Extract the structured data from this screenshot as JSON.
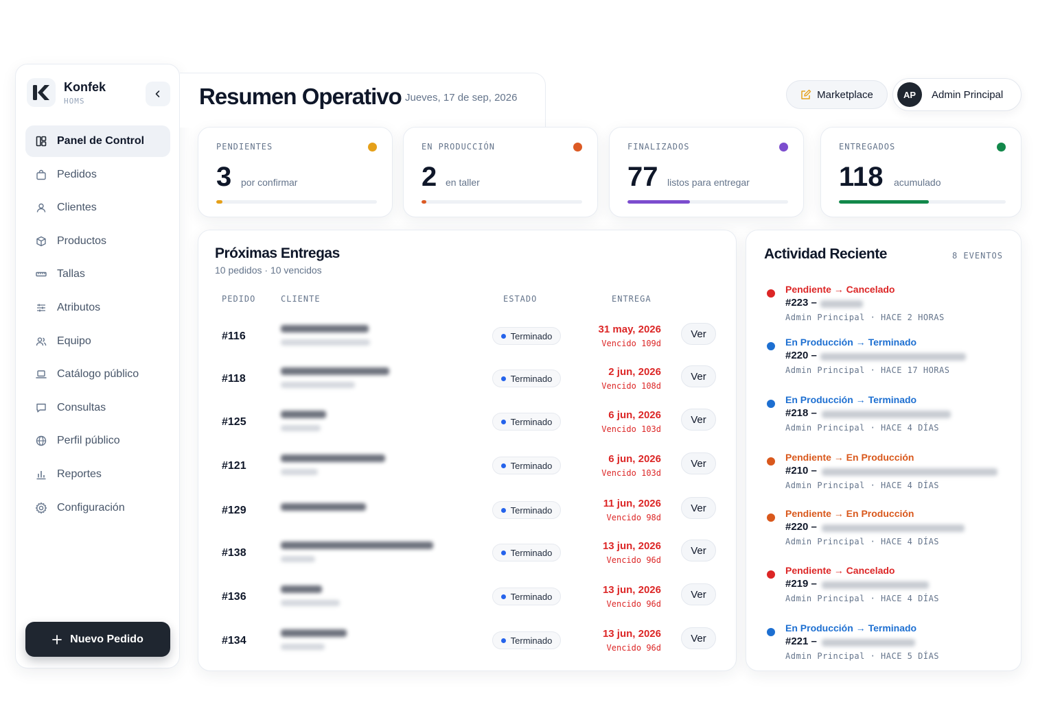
{
  "brand": {
    "name": "Konfek",
    "subtitle": "HOMS"
  },
  "sidebar": {
    "items": [
      {
        "label": "Panel de Control",
        "icon": "grid-icon"
      },
      {
        "label": "Pedidos",
        "icon": "bag-icon"
      },
      {
        "label": "Clientes",
        "icon": "user-icon"
      },
      {
        "label": "Productos",
        "icon": "box-icon"
      },
      {
        "label": "Tallas",
        "icon": "ruler-icon"
      },
      {
        "label": "Atributos",
        "icon": "sliders-icon"
      },
      {
        "label": "Equipo",
        "icon": "users-icon"
      },
      {
        "label": "Catálogo público",
        "icon": "laptop-icon"
      },
      {
        "label": "Consultas",
        "icon": "message-icon"
      },
      {
        "label": "Perfil público",
        "icon": "globe-icon"
      },
      {
        "label": "Reportes",
        "icon": "bar-chart-icon"
      },
      {
        "label": "Configuración",
        "icon": "gear-icon"
      }
    ],
    "new_order_label": "Nuevo Pedido"
  },
  "header": {
    "title": "Resumen Operativo",
    "date": "Jueves, 17 de sep, 2026",
    "marketplace_label": "Marketplace",
    "user_initials": "AP",
    "user_name": "Admin Principal"
  },
  "stats": [
    {
      "label": "PENDIENTES",
      "value": "3",
      "caption": "por confirmar",
      "color": "#e5a019",
      "progress": 0.04
    },
    {
      "label": "EN PRODUCCIÓN",
      "value": "2",
      "caption": "en taller",
      "color": "#dc5a24",
      "progress": 0.02
    },
    {
      "label": "FINALIZADOS",
      "value": "77",
      "caption": "listos para entregar",
      "color": "#7c4dce",
      "progress": 0.39
    },
    {
      "label": "ENTREGADOS",
      "value": "118",
      "caption": "acumulado",
      "color": "#12884a",
      "progress": 0.54
    }
  ],
  "deliveries": {
    "title": "Próximas Entregas",
    "subtitle": "10 pedidos · 10 vencidos",
    "columns": {
      "order": "PEDIDO",
      "client": "CLIENTE",
      "status": "ESTADO",
      "delivery": "ENTREGA"
    },
    "rows": [
      {
        "id": "#116",
        "status": "Terminado",
        "date": "31 may, 2026",
        "note": "Vencido 109d",
        "action": "Ver"
      },
      {
        "id": "#118",
        "status": "Terminado",
        "date": "2 jun, 2026",
        "note": "Vencido 108d",
        "action": "Ver"
      },
      {
        "id": "#125",
        "status": "Terminado",
        "date": "6 jun, 2026",
        "note": "Vencido 103d",
        "action": "Ver"
      },
      {
        "id": "#121",
        "status": "Terminado",
        "date": "6 jun, 2026",
        "note": "Vencido 103d",
        "action": "Ver"
      },
      {
        "id": "#129",
        "status": "Terminado",
        "date": "11 jun, 2026",
        "note": "Vencido 98d",
        "action": "Ver"
      },
      {
        "id": "#138",
        "status": "Terminado",
        "date": "13 jun, 2026",
        "note": "Vencido 96d",
        "action": "Ver"
      },
      {
        "id": "#136",
        "status": "Terminado",
        "date": "13 jun, 2026",
        "note": "Vencido 96d",
        "action": "Ver"
      },
      {
        "id": "#134",
        "status": "Terminado",
        "date": "13 jun, 2026",
        "note": "Vencido 96d",
        "action": "Ver"
      }
    ]
  },
  "activity": {
    "title": "Actividad Reciente",
    "count": "8 EVENTOS",
    "events": [
      {
        "title": "Pendiente → Cancelado",
        "order": "#223 –",
        "meta": "Admin Principal · HACE 2 HORAS",
        "color": "#dc2626"
      },
      {
        "title": "En Producción → Terminado",
        "order": "#220 –",
        "meta": "Admin Principal · HACE 17 HORAS",
        "color": "#1d6fd1"
      },
      {
        "title": "En Producción → Terminado",
        "order": "#218 –",
        "meta": "Admin Principal · HACE 4 DÍAS",
        "color": "#1d6fd1"
      },
      {
        "title": "Pendiente → En Producción",
        "order": "#210 –",
        "meta": "Admin Principal · HACE 4 DÍAS",
        "color": "#d9581c"
      },
      {
        "title": "Pendiente → En Producción",
        "order": "#220 –",
        "meta": "Admin Principal · HACE 4 DÍAS",
        "color": "#d9581c"
      },
      {
        "title": "Pendiente → Cancelado",
        "order": "#219 –",
        "meta": "Admin Principal · HACE 4 DÍAS",
        "color": "#dc2626"
      },
      {
        "title": "En Producción → Terminado",
        "order": "#221 –",
        "meta": "Admin Principal · HACE 5 DÍAS",
        "color": "#1d6fd1"
      }
    ]
  }
}
